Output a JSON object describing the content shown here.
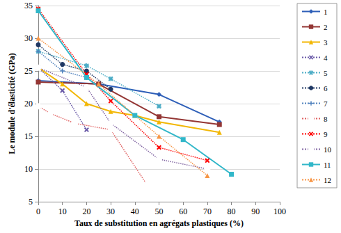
{
  "chart_data": {
    "type": "line",
    "x_label": "Taux de substitution en agrégats plastiques (%)",
    "y_label": "Le module d'élasticité (GPa)",
    "xlim": [
      0,
      100
    ],
    "xticks": [
      0,
      10,
      20,
      30,
      40,
      50,
      60,
      70,
      80,
      90,
      100
    ],
    "ylim": [
      5,
      35
    ],
    "yticks": [
      5,
      10,
      15,
      20,
      25,
      30,
      35
    ],
    "grid": true,
    "legend": "right",
    "series": [
      {
        "name": "1",
        "color": "#2e5fb8",
        "marker": "diamond",
        "line_style": "solid",
        "x": [
          0,
          25,
          50,
          75
        ],
        "values": [
          23.5,
          23,
          21.4,
          17.2
        ]
      },
      {
        "name": "2",
        "color": "#943634",
        "marker": "square",
        "line_style": "solid",
        "x": [
          0,
          25,
          50,
          75
        ],
        "values": [
          23.3,
          23,
          18,
          16.8
        ]
      },
      {
        "name": "3",
        "color": "#f2b705",
        "marker": "triangle",
        "line_style": "solid",
        "x": [
          0,
          10,
          20,
          30,
          40,
          50,
          75
        ],
        "values": [
          25.5,
          23,
          20,
          18.8,
          18.2,
          17.2,
          15.6
        ]
      },
      {
        "name": "4",
        "color": "#6a5aa8",
        "marker": "x",
        "line_style": "dotted",
        "x": [
          0,
          10,
          20
        ],
        "values": [
          25.5,
          22,
          16
        ]
      },
      {
        "name": "5",
        "color": "#4bacc6",
        "marker": "asterisk",
        "line_style": "dotted",
        "x": [
          0,
          20,
          30,
          50
        ],
        "values": [
          28,
          25.8,
          23.8,
          19.6
        ]
      },
      {
        "name": "6",
        "color": "#1f3864",
        "marker": "circle",
        "line_style": "dotted",
        "x": [
          0,
          10,
          20,
          30
        ],
        "values": [
          29,
          26,
          25,
          22.2
        ]
      },
      {
        "name": "7",
        "color": "#4f81bd",
        "marker": "plus",
        "line_style": "dotted",
        "x": [
          0,
          10,
          20
        ],
        "values": [
          28,
          25,
          24
        ]
      },
      {
        "name": "8",
        "color": "#e06060",
        "marker": "open_circle",
        "line_style": "dotted",
        "x": [
          0,
          5,
          15,
          30,
          45
        ],
        "values": [
          19.6,
          18.5,
          17,
          16,
          7.6
        ]
      },
      {
        "name": "9",
        "color": "#ff0000",
        "marker": "x",
        "line_style": "dotted",
        "x": [
          0,
          20,
          30,
          50,
          70
        ],
        "values": [
          34.5,
          24.5,
          20.4,
          13.3,
          11.3
        ]
      },
      {
        "name": "10",
        "color": "#8064a2",
        "marker": "open_circle",
        "line_style": "dotted",
        "x": [
          0,
          20,
          30,
          50,
          70
        ],
        "values": [
          25.5,
          22.5,
          17,
          11.5,
          10
        ]
      },
      {
        "name": "11",
        "color": "#31b7c9",
        "marker": "square",
        "line_style": "solid",
        "x": [
          0,
          20,
          40,
          60,
          80
        ],
        "values": [
          34.2,
          24,
          18.2,
          14.5,
          9.2
        ]
      },
      {
        "name": "12",
        "color": "#f79646",
        "marker": "triangle",
        "line_style": "dotted",
        "x": [
          0,
          25,
          50,
          70
        ],
        "values": [
          30,
          23,
          15,
          9
        ]
      }
    ]
  }
}
